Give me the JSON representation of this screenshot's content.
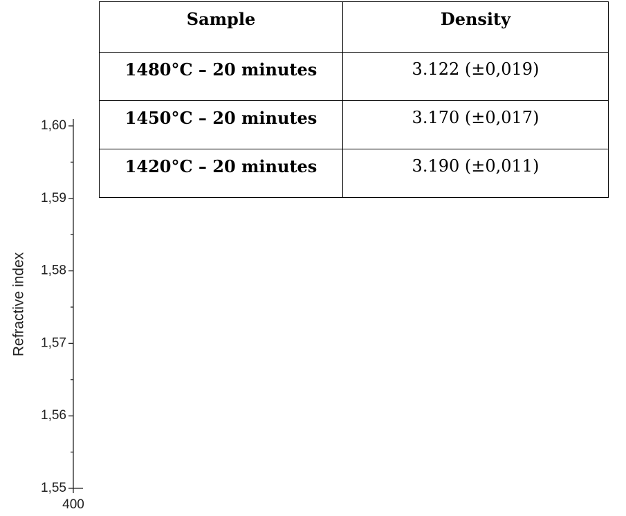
{
  "table": {
    "header": [
      "Sample",
      "Density"
    ],
    "rows": [
      [
        "1480°C – 20 minutes",
        "3.122 (±0,019)"
      ],
      [
        "1450°C – 20 minutes",
        "3.170 (±0,017)"
      ],
      [
        "1420°C – 20 minutes",
        "3.190 (±0,011)"
      ]
    ]
  },
  "axis": {
    "ylabel": "Refractive index",
    "yticks": [
      {
        "value": 1.6,
        "label": "1,60"
      },
      {
        "value": 1.59,
        "label": "1,59"
      },
      {
        "value": 1.58,
        "label": "1,58"
      },
      {
        "value": 1.57,
        "label": "1,57"
      },
      {
        "value": 1.56,
        "label": "1,56"
      },
      {
        "value": 1.55,
        "label": "1,55"
      }
    ],
    "xticks": [
      400
    ]
  }
}
